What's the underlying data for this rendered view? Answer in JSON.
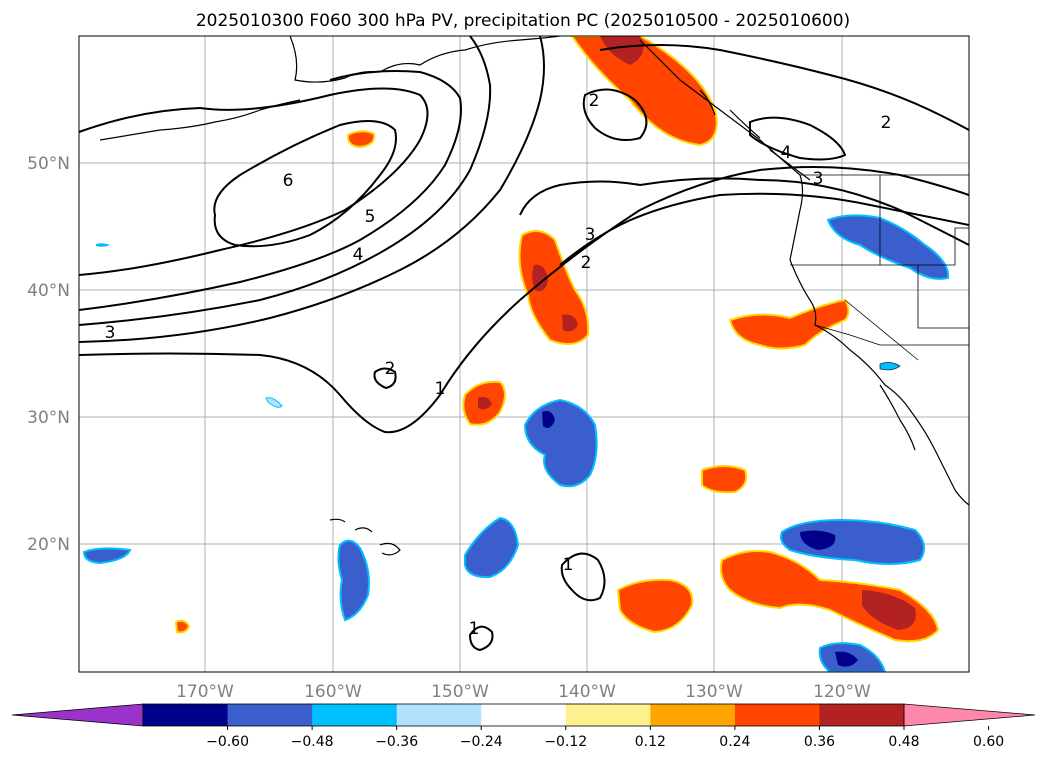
{
  "title": "2025010300 F060 300 hPa PV, precipitation PC (2025010500 - 2025010600)",
  "map": {
    "lon_ticks": [
      "170°W",
      "160°W",
      "150°W",
      "140°W",
      "130°W",
      "120°W"
    ],
    "lat_ticks": [
      "50°N",
      "40°N",
      "30°N",
      "20°N"
    ],
    "gridlines": true,
    "pv_contour_labels": [
      "6",
      "5",
      "4",
      "3",
      "3",
      "2",
      "2",
      "4",
      "3",
      "2",
      "1",
      "2",
      "1",
      "1"
    ]
  },
  "colorbar": {
    "ticks": [
      "−0.60",
      "−0.48",
      "−0.36",
      "−0.24",
      "−0.12",
      "0.12",
      "0.24",
      "0.36",
      "0.48",
      "0.60"
    ],
    "colors": [
      "#9933cc",
      "#00008b",
      "#3a5fcd",
      "#00bfff",
      "#b0e2ff",
      "#ffffff",
      "#fff08f",
      "#ffa500",
      "#ff4500",
      "#b22222",
      "#ff88aa"
    ],
    "extend": "both"
  },
  "colors": {
    "neg_strong": "#00008b",
    "neg_mid": "#3a5fcd",
    "neg_light": "#00bfff",
    "pos_light": "#fff08f",
    "pos_mid": "#ff4500",
    "pos_strong": "#b22222"
  }
}
